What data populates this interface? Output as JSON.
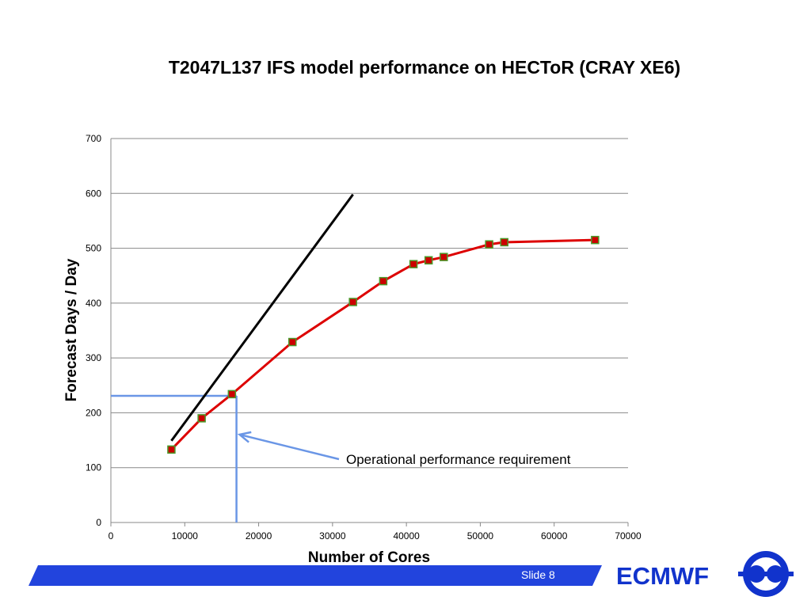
{
  "slide": {
    "title": "T2047L137 IFS model performance on HECToR (CRAY XE6)",
    "slide_number": "Slide 8",
    "brand": "ECMWF",
    "logo_icon": "ecmwf-logo-icon",
    "colors": {
      "footer_bar": "#2244dd",
      "brand_text": "#1133cc",
      "series_line": "#dd0000",
      "marker_fill": "#cc0000",
      "marker_stroke": "#4a9a2a",
      "ideal_line": "#000000",
      "annotation": "#6a96e6"
    }
  },
  "chart_data": {
    "type": "line",
    "title": "T2047L137 IFS model performance on HECToR (CRAY XE6)",
    "xlabel": "Number of Cores",
    "ylabel": "Forecast Days / Day",
    "xlim": [
      0,
      70000
    ],
    "ylim": [
      0,
      700
    ],
    "xticks": [
      0,
      10000,
      20000,
      30000,
      40000,
      50000,
      60000,
      70000
    ],
    "yticks": [
      0,
      100,
      200,
      300,
      400,
      500,
      600,
      700
    ],
    "grid": "horizontal",
    "legend": "none",
    "series": [
      {
        "x": [
          8192,
          12288,
          16384,
          24576,
          32768,
          36864,
          40960,
          43008,
          45056,
          51200,
          53248,
          65536
        ],
        "y": [
          133,
          190,
          234,
          329,
          402,
          440,
          471,
          478,
          484,
          507,
          511,
          515
        ]
      }
    ],
    "ideal_line": {
      "x": [
        8192,
        32768
      ],
      "y": [
        149,
        598
      ]
    },
    "annotation": {
      "text": "Operational performance requirement",
      "x": 17000,
      "y": 231
    }
  }
}
